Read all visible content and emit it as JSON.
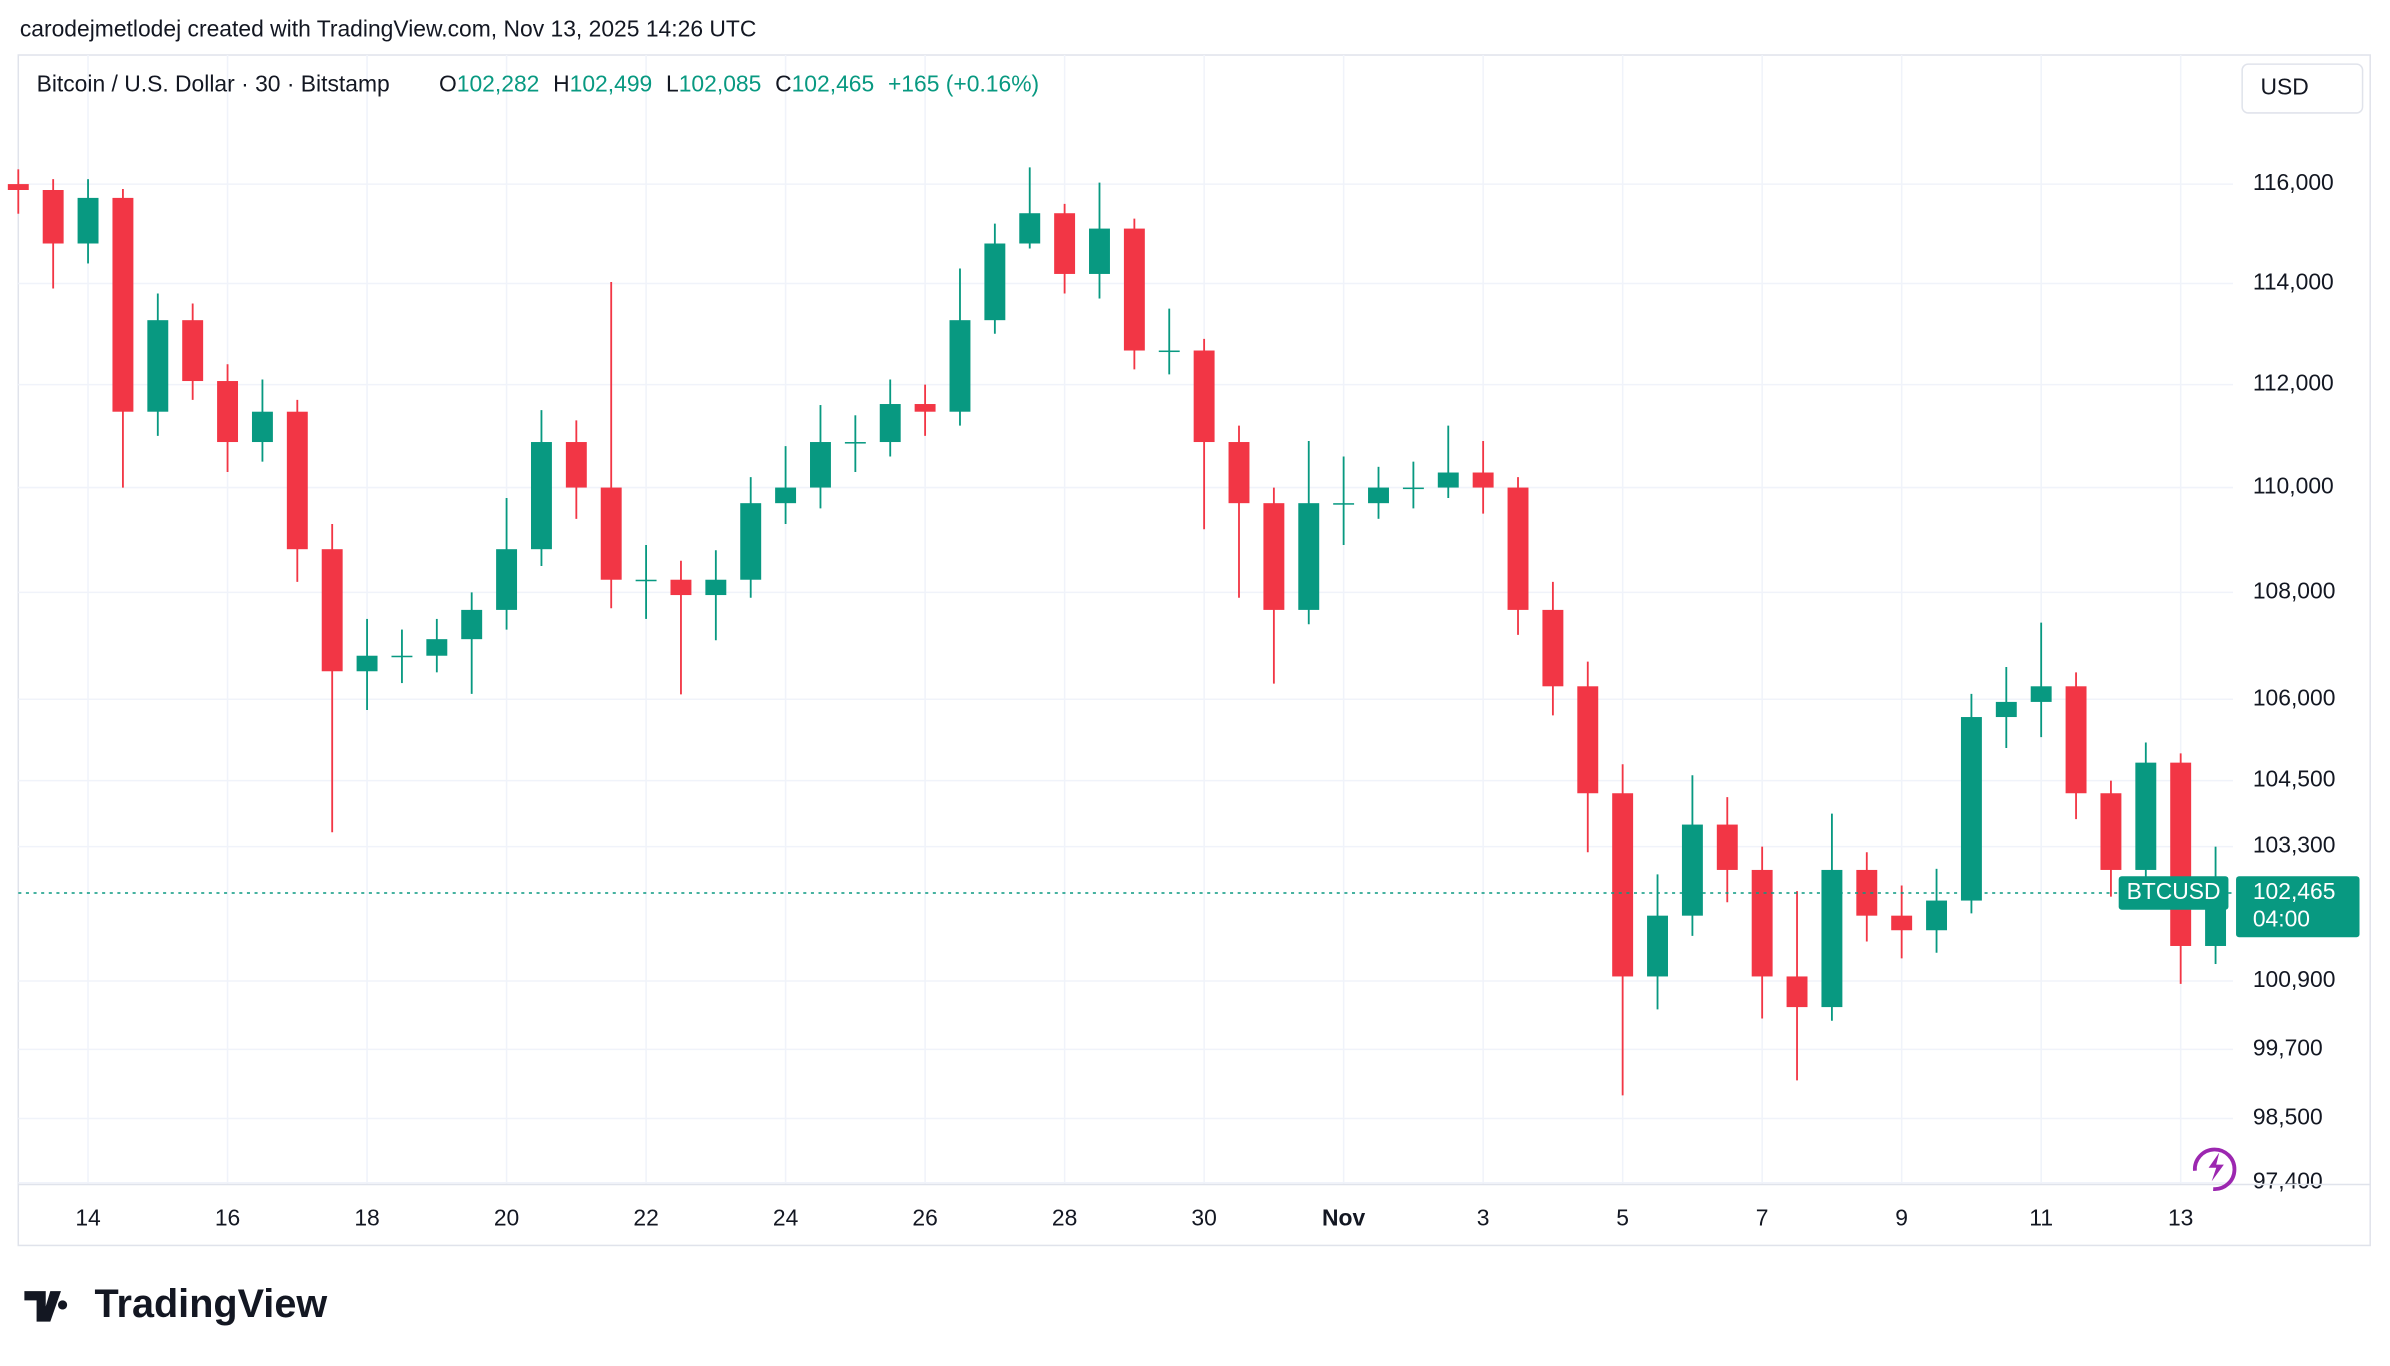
{
  "attribution": "carodejmetlodej created with TradingView.com, Nov 13, 2025 14:26 UTC",
  "logo": "TradingView",
  "currency": "USD",
  "chart_data": {
    "type": "candlestick",
    "symbol": "Bitcoin / U.S. Dollar · 30 · Bitstamp",
    "quote": [
      {
        "key": "O",
        "text": "102,282"
      },
      {
        "key": "H",
        "text": "102,499"
      },
      {
        "key": "L",
        "text": "102,085"
      },
      {
        "key": "C",
        "text": "102,465"
      },
      {
        "key": "",
        "text": "+165 (+0.16%)"
      }
    ],
    "last_price": {
      "value": 102465,
      "label": "102,465",
      "name": "BTCUSD",
      "countdown": "04:00"
    },
    "up_color": "#089981",
    "down_color": "#f23645",
    "log_scale": true,
    "grid": true,
    "xlim": [
      13.0,
      44.75
    ],
    "ylim": [
      97370,
      118650
    ],
    "xticks": [
      14,
      16,
      18,
      20,
      22,
      24,
      26,
      28,
      30,
      {
        "value": 32,
        "label": "Nov"
      },
      {
        "value": 34,
        "label": "3"
      },
      {
        "value": 36,
        "label": "5"
      },
      {
        "value": 38,
        "label": "7"
      },
      {
        "value": 40,
        "label": "9"
      },
      {
        "value": 42,
        "label": "11"
      },
      {
        "value": 44,
        "label": "13"
      }
    ],
    "yticks": [
      {
        "value": 97400,
        "label": "97,400"
      },
      {
        "value": 98500,
        "label": "98,500"
      },
      {
        "value": 99700,
        "label": "99,700"
      },
      {
        "value": 100900,
        "label": "100,900"
      },
      {
        "value": 103300,
        "label": "103,300"
      },
      {
        "value": 104500,
        "label": "104,500"
      },
      {
        "value": 106000,
        "label": "106,000"
      },
      {
        "value": 108000,
        "label": "108,000"
      },
      {
        "value": 110000,
        "label": "110,000"
      },
      {
        "value": 112000,
        "label": "112,000"
      },
      {
        "value": 114000,
        "label": "114,000"
      },
      {
        "value": 116000,
        "label": "116,000"
      }
    ],
    "x": [
      13,
      13.5,
      14,
      14.5,
      15,
      15.5,
      16,
      16.5,
      17,
      17.5,
      18,
      18.5,
      19,
      19.5,
      20,
      20.5,
      21,
      21.5,
      22,
      22.5,
      23,
      23.5,
      24,
      24.5,
      25,
      25.5,
      26,
      26.5,
      27,
      27.5,
      28,
      28.5,
      29,
      29.5,
      30,
      30.5,
      31,
      31.5,
      32,
      32.5,
      33,
      33.5,
      34,
      34.5,
      35,
      35.5,
      36,
      36.5,
      37,
      37.5,
      38,
      38.5,
      39,
      39.5,
      40,
      40.5,
      41,
      41.5,
      42,
      42.5,
      43,
      43.5,
      44,
      44.5
    ],
    "open": [
      116000,
      115880,
      114800,
      115720,
      111470,
      113270,
      112070,
      110880,
      111470,
      108820,
      106520,
      106810,
      106810,
      107120,
      107670,
      108820,
      110880,
      110000,
      108240,
      108240,
      107950,
      108240,
      109700,
      110000,
      110880,
      110880,
      111620,
      111470,
      113270,
      114800,
      115410,
      114190,
      115100,
      112670,
      112670,
      110880,
      109700,
      107670,
      109700,
      109700,
      110000,
      110000,
      110290,
      110000,
      107670,
      106240,
      104270,
      100980,
      102060,
      103700,
      102880,
      100980,
      100440,
      102880,
      102060,
      101800,
      102330,
      105670,
      105950,
      106240,
      104270,
      102880,
      104830,
      101520
    ],
    "high": [
      116300,
      116100,
      116100,
      115900,
      113800,
      113600,
      112400,
      112100,
      111700,
      109300,
      107500,
      107300,
      107500,
      108000,
      109800,
      111500,
      111300,
      114030,
      108900,
      108600,
      108800,
      110200,
      110800,
      111600,
      111400,
      112100,
      112000,
      114300,
      115200,
      116340,
      115600,
      116030,
      115300,
      113500,
      112900,
      111200,
      110000,
      110900,
      110600,
      110400,
      110500,
      111200,
      110900,
      110200,
      108200,
      106700,
      104800,
      102800,
      104600,
      104200,
      103300,
      102500,
      103900,
      103200,
      102600,
      102900,
      106100,
      106600,
      107430,
      106500,
      104500,
      105200,
      105000,
      103300
    ],
    "low": [
      115400,
      113900,
      114400,
      110000,
      111000,
      111700,
      110300,
      110500,
      108200,
      103560,
      105800,
      106300,
      106500,
      106100,
      107300,
      108500,
      109400,
      107700,
      107500,
      106090,
      107100,
      107900,
      109300,
      109600,
      110300,
      110600,
      111000,
      111200,
      113000,
      114700,
      113800,
      113700,
      112300,
      112200,
      109200,
      107900,
      106290,
      107400,
      108900,
      109400,
      109600,
      109800,
      109500,
      107200,
      105700,
      103200,
      98900,
      100400,
      101700,
      102300,
      100240,
      99160,
      100200,
      101600,
      101300,
      101400,
      102100,
      105100,
      105300,
      103800,
      102400,
      102600,
      100850,
      101200
    ],
    "close": [
      115880,
      114800,
      115720,
      111470,
      113270,
      112070,
      110880,
      111470,
      108820,
      106520,
      106810,
      106810,
      107120,
      107670,
      108820,
      110880,
      110000,
      108240,
      108240,
      107950,
      108240,
      109700,
      110000,
      110880,
      110880,
      111620,
      111470,
      113270,
      114800,
      115410,
      114190,
      115100,
      112670,
      112670,
      110880,
      109700,
      107670,
      109700,
      109700,
      110000,
      110000,
      110290,
      110000,
      107670,
      106240,
      104270,
      100980,
      102060,
      103700,
      102880,
      100980,
      100440,
      102880,
      102060,
      101800,
      102330,
      105670,
      105950,
      106240,
      104270,
      102880,
      104830,
      101520,
      102465
    ]
  }
}
